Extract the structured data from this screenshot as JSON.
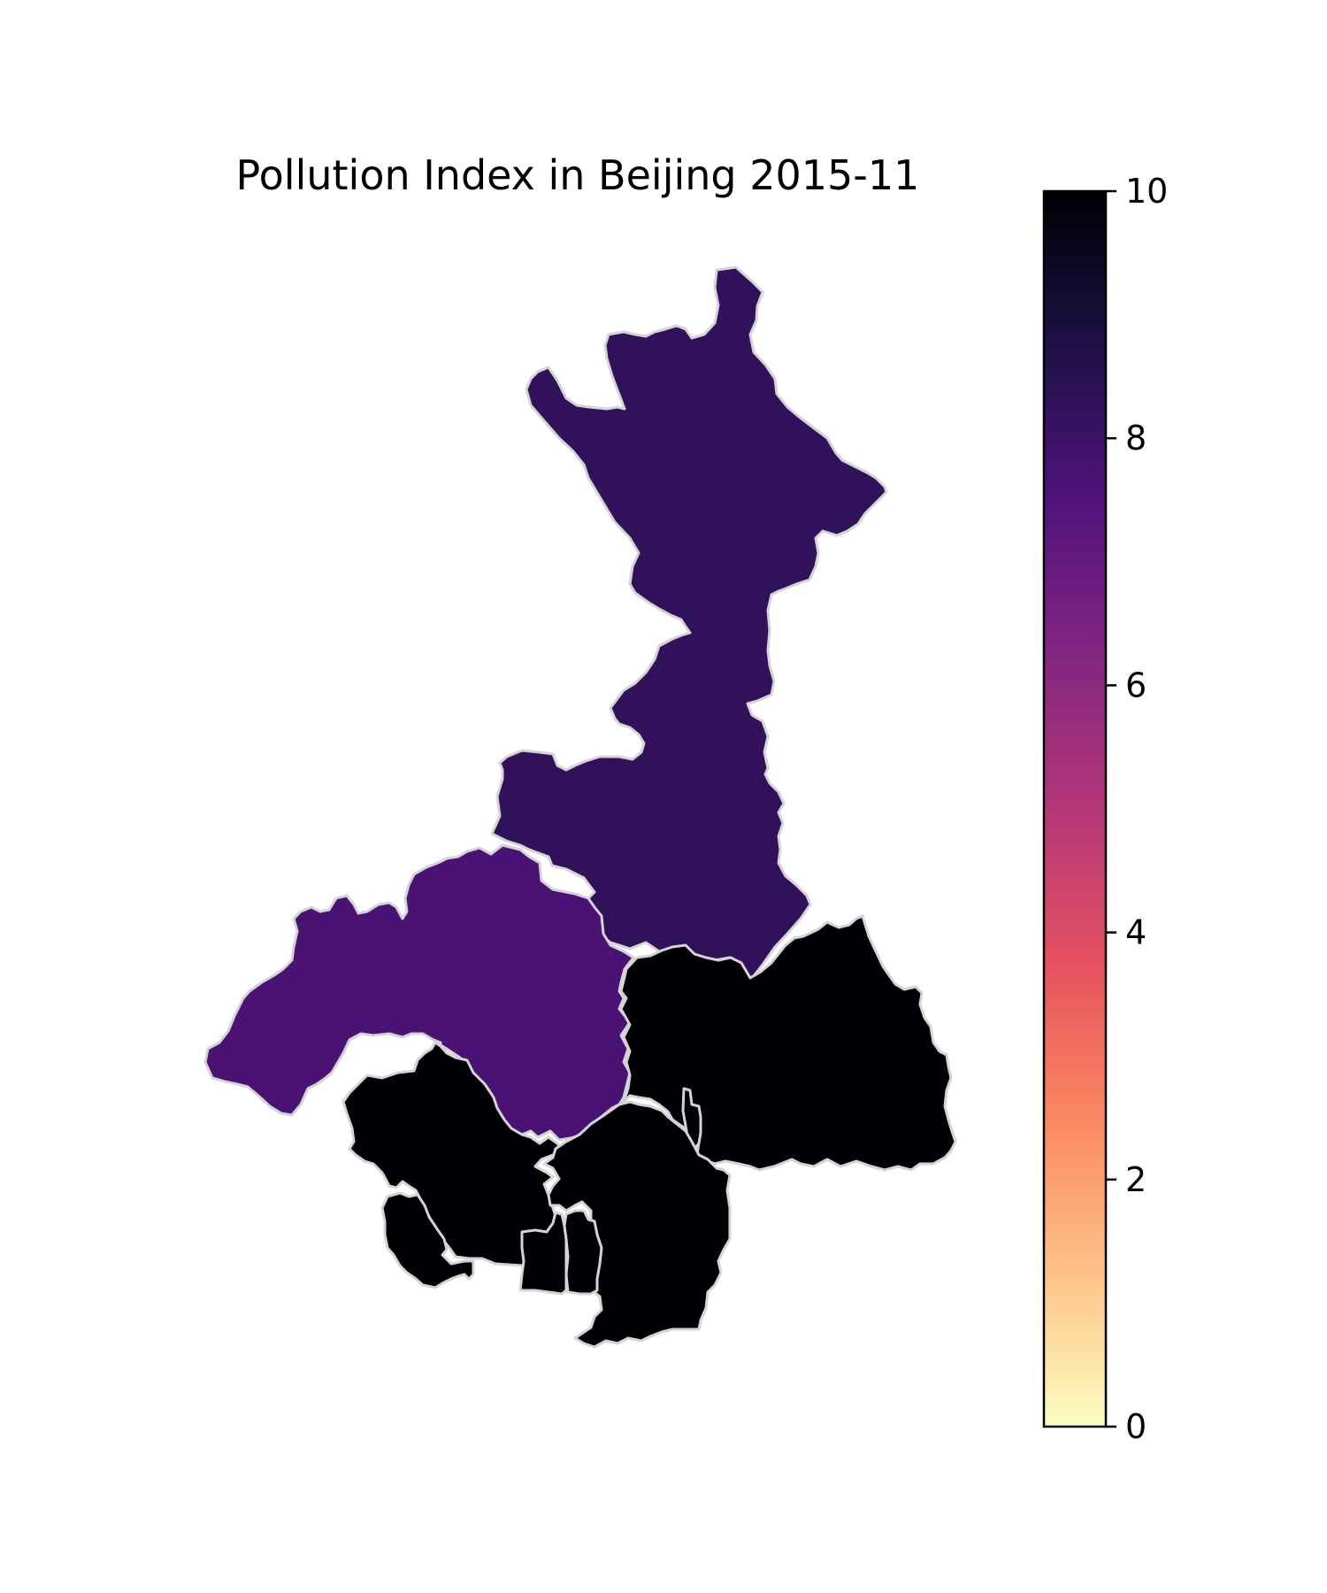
{
  "chart_data": {
    "type": "choropleth",
    "title": "Pollution Index in Beijing 2015-11",
    "colormap": "magma_r",
    "colorbar": {
      "min": 0,
      "max": 10,
      "ticks": [
        0,
        2,
        4,
        6,
        8,
        10
      ],
      "tick_labels": [
        "0",
        "2",
        "4",
        "6",
        "8",
        "10"
      ],
      "stops": [
        "#fcfdbf",
        "#fec287",
        "#fb8761",
        "#e5515e",
        "#b5367a",
        "#832681",
        "#51127c",
        "#1d1147",
        "#000004"
      ]
    },
    "regions": [
      {
        "id": "north",
        "value": 8.3
      },
      {
        "id": "west",
        "value": 7.7
      },
      {
        "id": "east",
        "value": 10
      },
      {
        "id": "southwest",
        "value": 10
      },
      {
        "id": "southcenter",
        "value": 10
      },
      {
        "id": "far-southwest",
        "value": 10
      },
      {
        "id": "core-a",
        "value": 10
      },
      {
        "id": "core-b",
        "value": 10
      }
    ]
  }
}
